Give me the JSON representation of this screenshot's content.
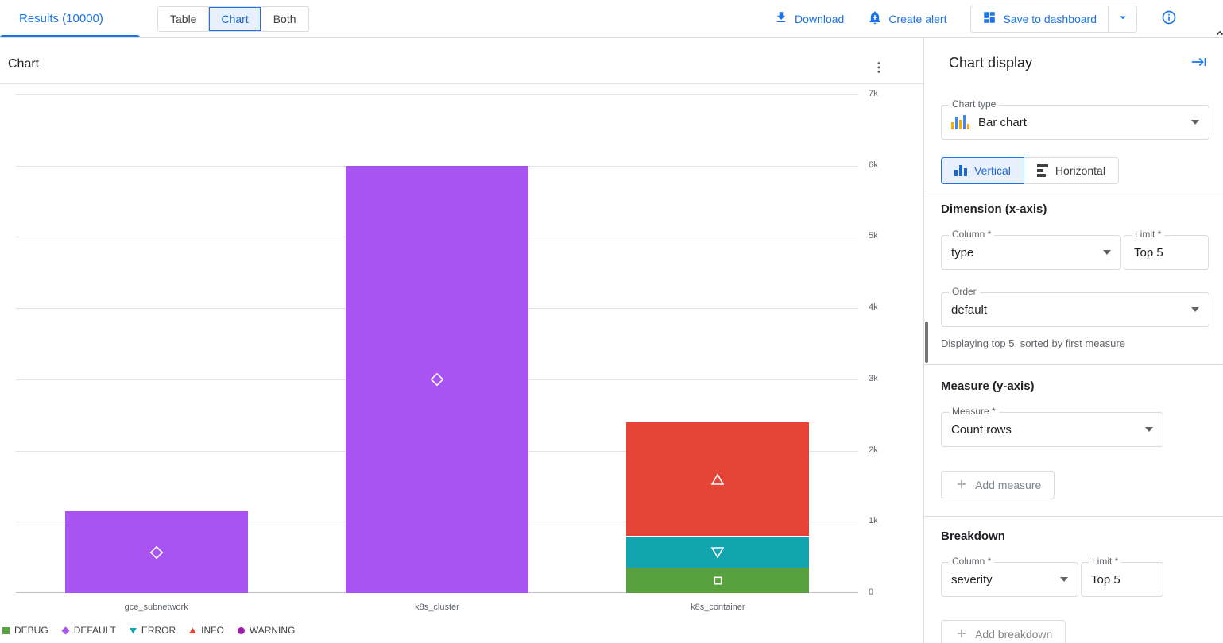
{
  "topbar": {
    "results_label": "Results (10000)",
    "view_toggle": [
      "Table",
      "Chart",
      "Both"
    ],
    "selected_view": "Chart",
    "actions": {
      "download": "Download",
      "create_alert": "Create alert",
      "save_to_dashboard": "Save to dashboard"
    }
  },
  "chart_panel": {
    "title": "Chart"
  },
  "chart_data": {
    "type": "bar",
    "stacked": true,
    "orientation": "vertical",
    "title": "Chart",
    "categories": [
      "gce_subnetwork",
      "k8s_cluster",
      "k8s_container"
    ],
    "series": [
      {
        "name": "DEBUG",
        "marker": "square",
        "color": "#58a13f",
        "values": [
          0,
          0,
          360
        ]
      },
      {
        "name": "DEFAULT",
        "marker": "diamond",
        "color": "#a853f2",
        "values": [
          1150,
          6000,
          0
        ]
      },
      {
        "name": "ERROR",
        "marker": "triangle-down",
        "color": "#12a4af",
        "values": [
          0,
          0,
          440
        ]
      },
      {
        "name": "INFO",
        "marker": "triangle-up",
        "color": "#e54335",
        "values": [
          0,
          0,
          1590
        ]
      },
      {
        "name": "WARNING",
        "marker": "circle",
        "color": "#a11cb0",
        "values": [
          0,
          0,
          0
        ]
      }
    ],
    "ylim": [
      0,
      7000
    ],
    "yticks": [
      "0",
      "1k",
      "2k",
      "3k",
      "4k",
      "5k",
      "6k",
      "7k"
    ],
    "grid": true,
    "legend_position": "bottom-left",
    "legend": [
      "DEBUG",
      "DEFAULT",
      "ERROR",
      "INFO",
      "WARNING"
    ]
  },
  "sidebar": {
    "title": "Chart display",
    "chart_type": {
      "label": "Chart type",
      "value": "Bar chart"
    },
    "orientation": {
      "vertical": "Vertical",
      "horizontal": "Horizontal",
      "selected": "Vertical"
    },
    "dimension": {
      "heading": "Dimension (x-axis)",
      "column": {
        "label": "Column *",
        "value": "type"
      },
      "limit": {
        "label": "Limit *",
        "value": "Top 5"
      },
      "order": {
        "label": "Order",
        "value": "default"
      },
      "helper": "Displaying top 5, sorted by first measure"
    },
    "measure": {
      "heading": "Measure (y-axis)",
      "measure": {
        "label": "Measure *",
        "value": "Count rows"
      },
      "add_button": "Add measure"
    },
    "breakdown": {
      "heading": "Breakdown",
      "column": {
        "label": "Column *",
        "value": "severity"
      },
      "limit": {
        "label": "Limit *",
        "value": "Top 5"
      },
      "add_button": "Add breakdown"
    }
  },
  "icons": [
    "download-icon",
    "add-alert-icon",
    "dashboard-icon",
    "dropdown-caret-icon",
    "info-icon",
    "unfold-more-icon",
    "kebab-menu-icon",
    "collapse-panel-icon",
    "bar-chart-icon",
    "vertical-bars-icon",
    "horizontal-bars-icon",
    "plus-icon"
  ],
  "colors": {
    "accent_blue": "#1a73e8",
    "selected_bg": "#e8f0fe",
    "border": "#dadce0",
    "text_primary": "#202124",
    "text_secondary": "#5f6368"
  }
}
